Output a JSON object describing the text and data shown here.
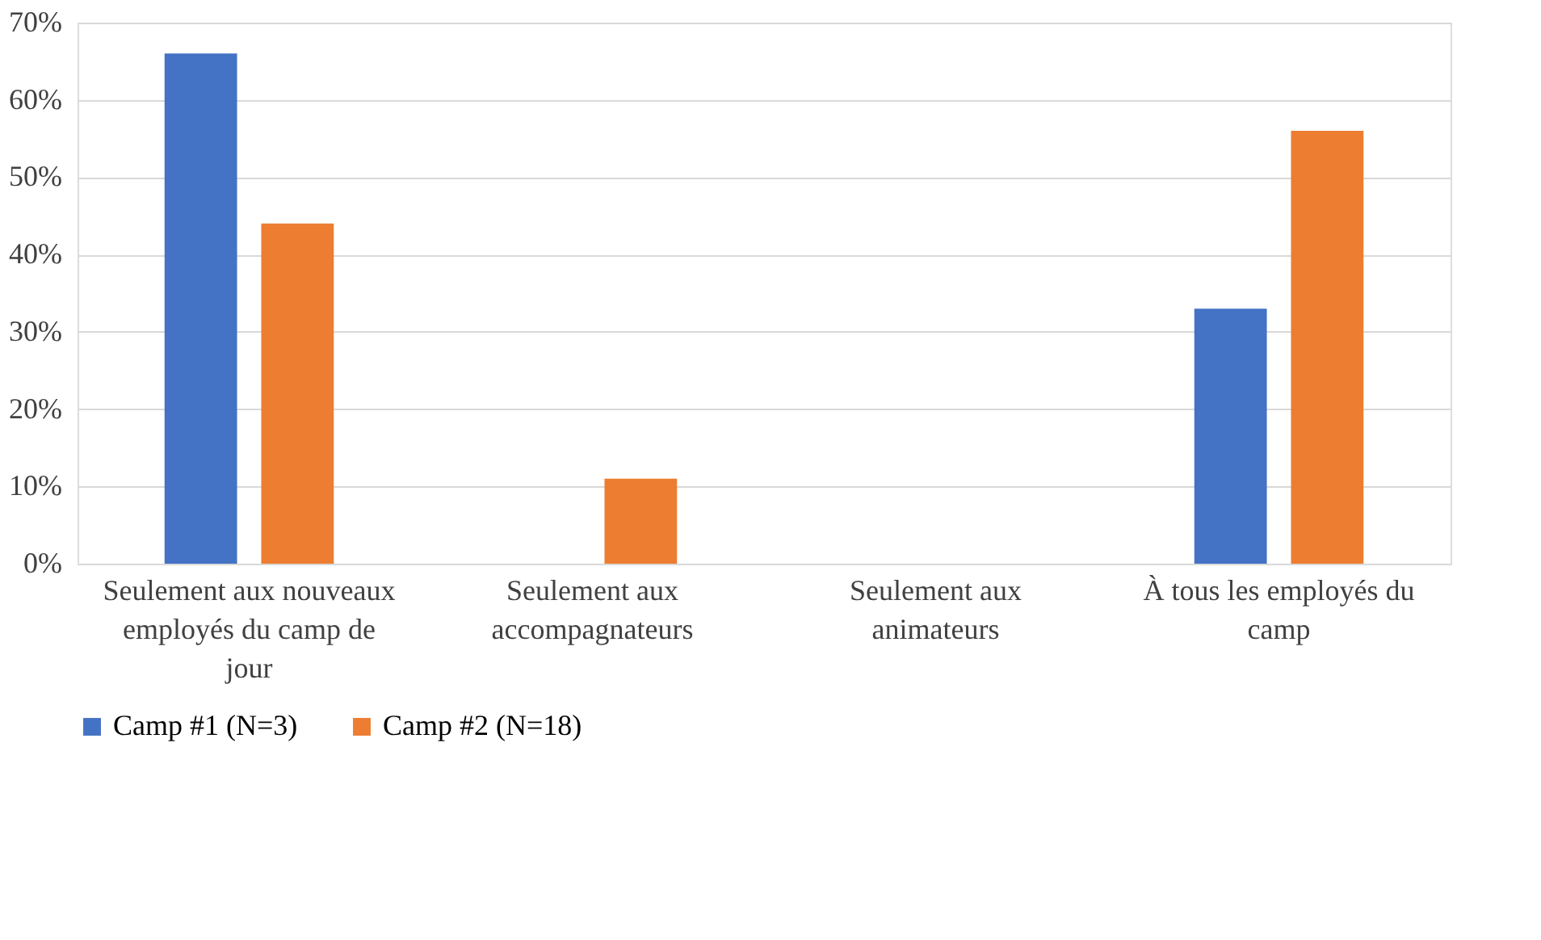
{
  "chart_data": {
    "type": "bar",
    "categories": [
      "Seulement aux nouveaux employés du camp de jour",
      "Seulement aux accompagnateurs",
      "Seulement aux animateurs",
      "À tous les employés du camp"
    ],
    "series": [
      {
        "name": "Camp #1 (N=3)",
        "color": "#4472c4",
        "values": [
          66,
          0,
          0,
          33
        ]
      },
      {
        "name": "Camp #2 (N=18)",
        "color": "#ed7d31",
        "values": [
          44,
          11,
          0,
          56
        ]
      }
    ],
    "ylim": [
      0,
      70
    ],
    "yticks": [
      {
        "value": 0,
        "label": "0%"
      },
      {
        "value": 10,
        "label": "10%"
      },
      {
        "value": 20,
        "label": "20%"
      },
      {
        "value": 30,
        "label": "30%"
      },
      {
        "value": 40,
        "label": "40%"
      },
      {
        "value": 50,
        "label": "50%"
      },
      {
        "value": 60,
        "label": "60%"
      },
      {
        "value": 70,
        "label": "70%"
      }
    ],
    "grid": "y",
    "legend": "bottom"
  }
}
